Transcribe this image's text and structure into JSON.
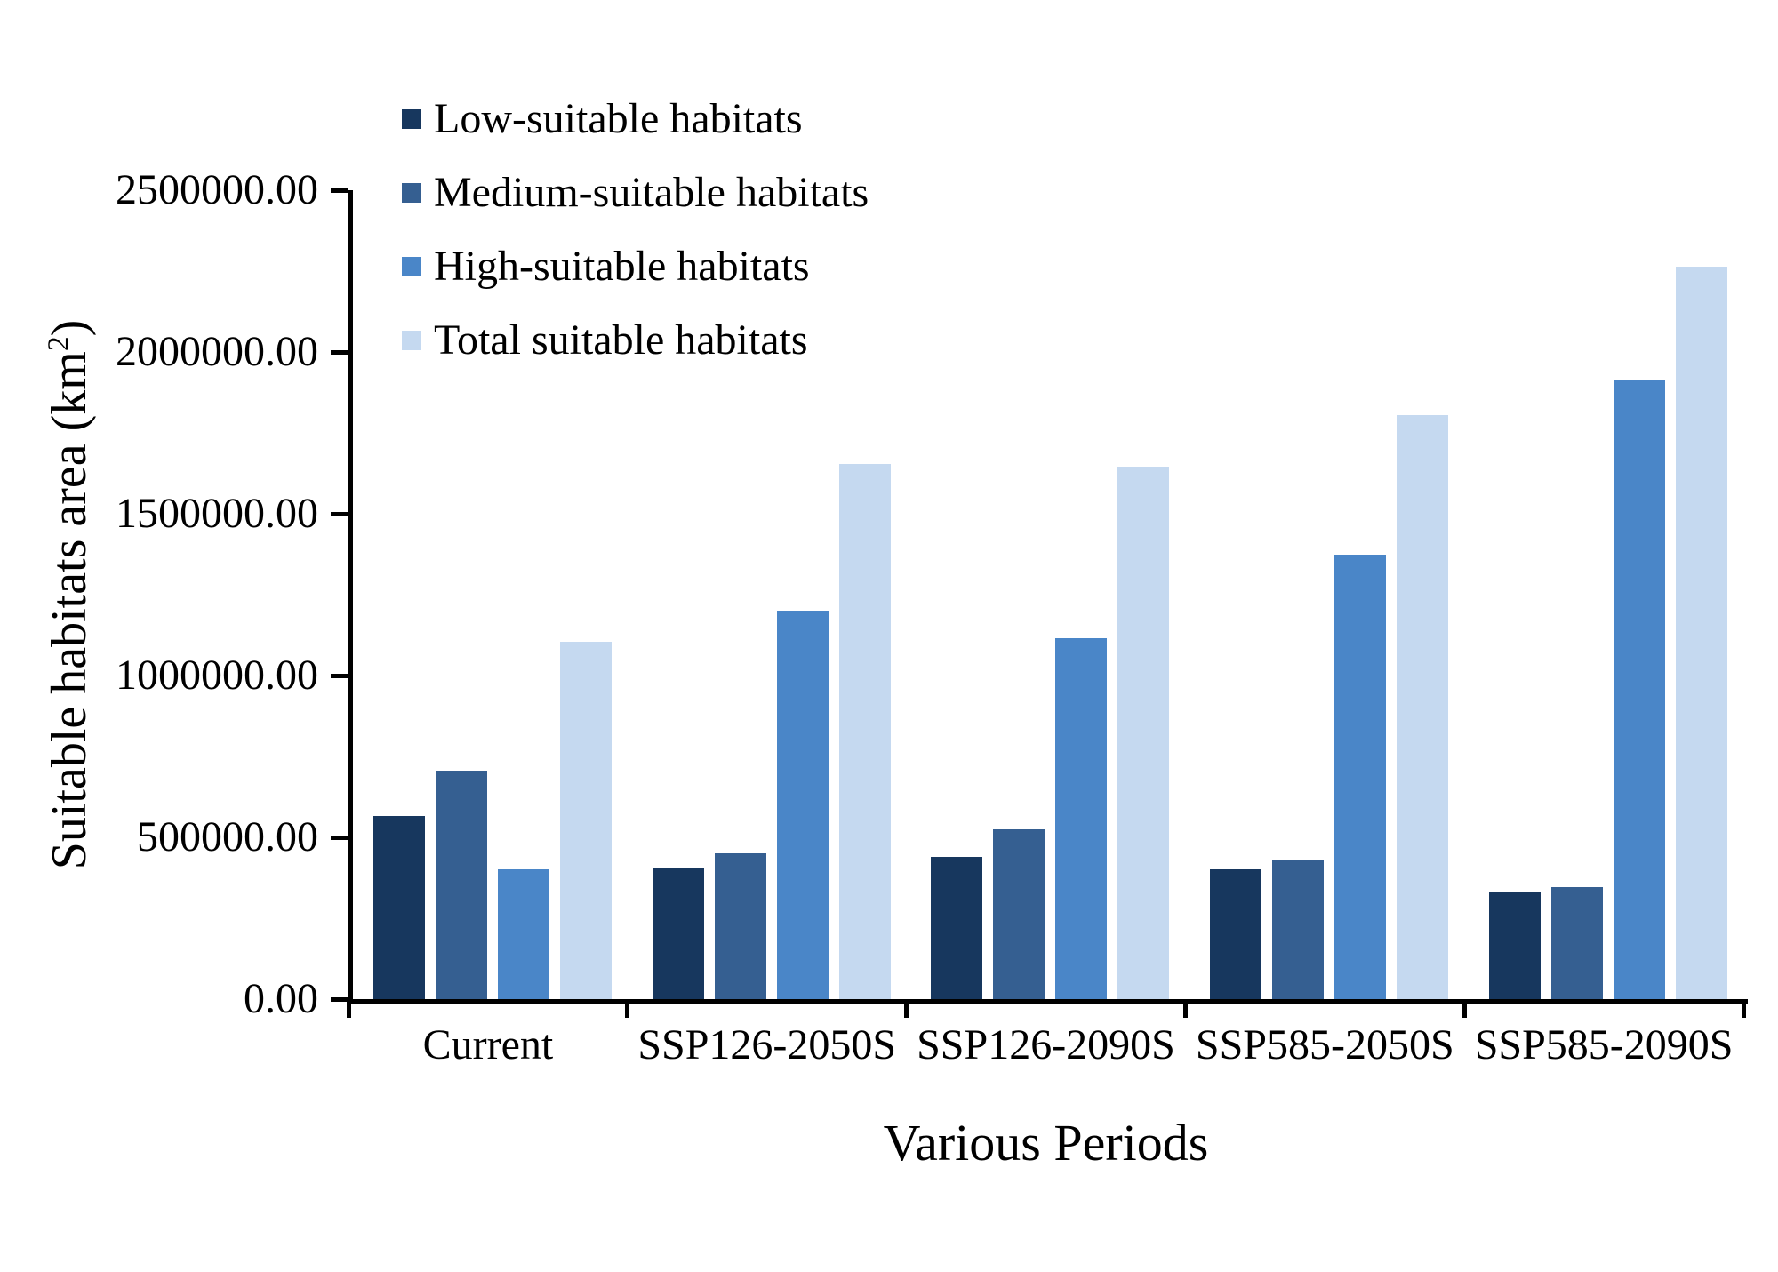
{
  "chart_data": {
    "type": "bar",
    "title": "",
    "xlabel": "Various Periods",
    "ylabel": "Suitable habitats area (km2)",
    "ylabel_parts": {
      "pre": "Suitable habitats area (km",
      "sup": "2",
      "post": ")"
    },
    "categories": [
      "Current",
      "SSP126-2050S",
      "SSP126-2090S",
      "SSP585-2050S",
      "SSP585-2090S"
    ],
    "series": [
      {
        "name": "Low-suitable habitats",
        "color": "#17375e",
        "values": [
          565000,
          405000,
          440000,
          400000,
          330000
        ]
      },
      {
        "name": "Medium-suitable habitats",
        "color": "#355f91",
        "values": [
          705000,
          450000,
          525000,
          430000,
          345000
        ]
      },
      {
        "name": "High-suitable habitats",
        "color": "#4a86c8",
        "values": [
          400000,
          1200000,
          1115000,
          1375000,
          1915000
        ]
      },
      {
        "name": "Total suitable habitats",
        "color": "#c5d9f0",
        "values": [
          1105000,
          1655000,
          1645000,
          1805000,
          2265000
        ]
      }
    ],
    "ylim": [
      0,
      2500000
    ],
    "ytick_labels": [
      "0.00",
      "500000.00",
      "1000000.00",
      "1500000.00",
      "2000000.00",
      "2500000.00"
    ],
    "legend_position": "top-left",
    "grid": false,
    "axis_color": "#000000",
    "background": "#ffffff"
  }
}
